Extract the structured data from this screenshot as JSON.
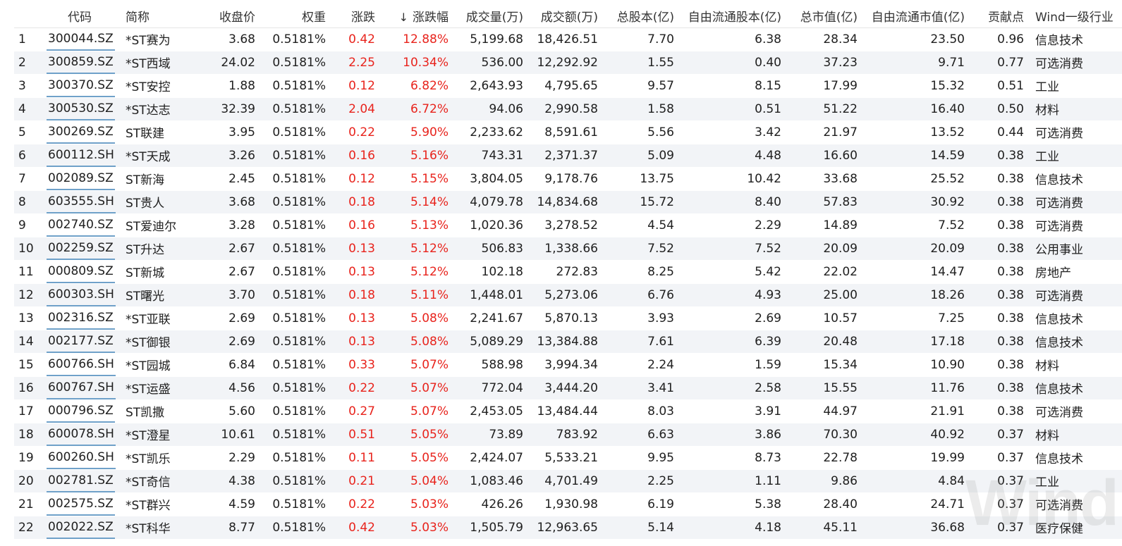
{
  "table": {
    "headers": {
      "index": "",
      "code": "代码",
      "name": "简称",
      "close": "收盘价",
      "weight": "权重",
      "change": "涨跌",
      "change_pct": "涨跌幅",
      "volume": "成交量(万)",
      "amount": "成交额(万)",
      "total_shares": "总股本(亿)",
      "free_float_shares": "自由流通股本(亿)",
      "market_cap": "总市值(亿)",
      "free_float_cap": "自由流通市值(亿)",
      "contribution": "贡献点",
      "industry": "Wind一级行业"
    },
    "sort_column": "change_pct",
    "sort_direction": "down-arrow-icon",
    "rows": [
      {
        "index": "1",
        "code": "300044.SZ",
        "name": "*ST赛为",
        "close": "3.68",
        "weight": "0.5181%",
        "change": "0.42",
        "change_pct": "12.88%",
        "volume": "5,199.68",
        "amount": "18,426.51",
        "total_shares": "7.70",
        "free_float_shares": "6.38",
        "market_cap": "28.34",
        "free_float_cap": "23.50",
        "contribution": "0.96",
        "industry": "信息技术"
      },
      {
        "index": "2",
        "code": "300859.SZ",
        "name": "*ST西域",
        "close": "24.02",
        "weight": "0.5181%",
        "change": "2.25",
        "change_pct": "10.34%",
        "volume": "536.00",
        "amount": "12,292.92",
        "total_shares": "1.55",
        "free_float_shares": "0.40",
        "market_cap": "37.23",
        "free_float_cap": "9.71",
        "contribution": "0.77",
        "industry": "可选消费"
      },
      {
        "index": "3",
        "code": "300370.SZ",
        "name": "*ST安控",
        "close": "1.88",
        "weight": "0.5181%",
        "change": "0.12",
        "change_pct": "6.82%",
        "volume": "2,643.93",
        "amount": "4,795.65",
        "total_shares": "9.57",
        "free_float_shares": "8.15",
        "market_cap": "17.99",
        "free_float_cap": "15.32",
        "contribution": "0.51",
        "industry": "工业"
      },
      {
        "index": "4",
        "code": "300530.SZ",
        "name": "*ST达志",
        "close": "32.39",
        "weight": "0.5181%",
        "change": "2.04",
        "change_pct": "6.72%",
        "volume": "94.06",
        "amount": "2,990.58",
        "total_shares": "1.58",
        "free_float_shares": "0.51",
        "market_cap": "51.22",
        "free_float_cap": "16.40",
        "contribution": "0.50",
        "industry": "材料"
      },
      {
        "index": "5",
        "code": "300269.SZ",
        "name": "ST联建",
        "close": "3.95",
        "weight": "0.5181%",
        "change": "0.22",
        "change_pct": "5.90%",
        "volume": "2,233.62",
        "amount": "8,591.61",
        "total_shares": "5.56",
        "free_float_shares": "3.42",
        "market_cap": "21.97",
        "free_float_cap": "13.52",
        "contribution": "0.44",
        "industry": "可选消费"
      },
      {
        "index": "6",
        "code": "600112.SH",
        "name": "*ST天成",
        "close": "3.26",
        "weight": "0.5181%",
        "change": "0.16",
        "change_pct": "5.16%",
        "volume": "743.31",
        "amount": "2,371.37",
        "total_shares": "5.09",
        "free_float_shares": "4.48",
        "market_cap": "16.60",
        "free_float_cap": "14.59",
        "contribution": "0.38",
        "industry": "工业"
      },
      {
        "index": "7",
        "code": "002089.SZ",
        "name": "ST新海",
        "close": "2.45",
        "weight": "0.5181%",
        "change": "0.12",
        "change_pct": "5.15%",
        "volume": "3,804.05",
        "amount": "9,178.76",
        "total_shares": "13.75",
        "free_float_shares": "10.42",
        "market_cap": "33.68",
        "free_float_cap": "25.52",
        "contribution": "0.38",
        "industry": "信息技术"
      },
      {
        "index": "8",
        "code": "603555.SH",
        "name": "ST贵人",
        "close": "3.68",
        "weight": "0.5181%",
        "change": "0.18",
        "change_pct": "5.14%",
        "volume": "4,079.78",
        "amount": "14,834.68",
        "total_shares": "15.72",
        "free_float_shares": "8.40",
        "market_cap": "57.83",
        "free_float_cap": "30.92",
        "contribution": "0.38",
        "industry": "可选消费"
      },
      {
        "index": "9",
        "code": "002740.SZ",
        "name": "ST爱迪尔",
        "close": "3.28",
        "weight": "0.5181%",
        "change": "0.16",
        "change_pct": "5.13%",
        "volume": "1,020.36",
        "amount": "3,278.52",
        "total_shares": "4.54",
        "free_float_shares": "2.29",
        "market_cap": "14.89",
        "free_float_cap": "7.52",
        "contribution": "0.38",
        "industry": "可选消费"
      },
      {
        "index": "10",
        "code": "002259.SZ",
        "name": "ST升达",
        "close": "2.67",
        "weight": "0.5181%",
        "change": "0.13",
        "change_pct": "5.12%",
        "volume": "506.83",
        "amount": "1,338.66",
        "total_shares": "7.52",
        "free_float_shares": "7.52",
        "market_cap": "20.09",
        "free_float_cap": "20.09",
        "contribution": "0.38",
        "industry": "公用事业"
      },
      {
        "index": "11",
        "code": "000809.SZ",
        "name": "ST新城",
        "close": "2.67",
        "weight": "0.5181%",
        "change": "0.13",
        "change_pct": "5.12%",
        "volume": "102.18",
        "amount": "272.83",
        "total_shares": "8.25",
        "free_float_shares": "5.42",
        "market_cap": "22.02",
        "free_float_cap": "14.47",
        "contribution": "0.38",
        "industry": "房地产"
      },
      {
        "index": "12",
        "code": "600303.SH",
        "name": "ST曙光",
        "close": "3.70",
        "weight": "0.5181%",
        "change": "0.18",
        "change_pct": "5.11%",
        "volume": "1,448.01",
        "amount": "5,273.06",
        "total_shares": "6.76",
        "free_float_shares": "4.93",
        "market_cap": "25.00",
        "free_float_cap": "18.26",
        "contribution": "0.38",
        "industry": "可选消费"
      },
      {
        "index": "13",
        "code": "002316.SZ",
        "name": "*ST亚联",
        "close": "2.69",
        "weight": "0.5181%",
        "change": "0.13",
        "change_pct": "5.08%",
        "volume": "2,241.67",
        "amount": "5,870.13",
        "total_shares": "3.93",
        "free_float_shares": "2.69",
        "market_cap": "10.57",
        "free_float_cap": "7.25",
        "contribution": "0.38",
        "industry": "信息技术"
      },
      {
        "index": "14",
        "code": "002177.SZ",
        "name": "*ST御银",
        "close": "2.69",
        "weight": "0.5181%",
        "change": "0.13",
        "change_pct": "5.08%",
        "volume": "5,089.29",
        "amount": "13,384.88",
        "total_shares": "7.61",
        "free_float_shares": "6.39",
        "market_cap": "20.48",
        "free_float_cap": "17.18",
        "contribution": "0.38",
        "industry": "信息技术"
      },
      {
        "index": "15",
        "code": "600766.SH",
        "name": "*ST园城",
        "close": "6.84",
        "weight": "0.5181%",
        "change": "0.33",
        "change_pct": "5.07%",
        "volume": "588.98",
        "amount": "3,994.34",
        "total_shares": "2.24",
        "free_float_shares": "1.59",
        "market_cap": "15.34",
        "free_float_cap": "10.90",
        "contribution": "0.38",
        "industry": "材料"
      },
      {
        "index": "16",
        "code": "600767.SH",
        "name": "*ST运盛",
        "close": "4.56",
        "weight": "0.5181%",
        "change": "0.22",
        "change_pct": "5.07%",
        "volume": "772.04",
        "amount": "3,444.20",
        "total_shares": "3.41",
        "free_float_shares": "2.58",
        "market_cap": "15.55",
        "free_float_cap": "11.76",
        "contribution": "0.38",
        "industry": "信息技术"
      },
      {
        "index": "17",
        "code": "000796.SZ",
        "name": "ST凯撒",
        "close": "5.60",
        "weight": "0.5181%",
        "change": "0.27",
        "change_pct": "5.07%",
        "volume": "2,453.05",
        "amount": "13,484.44",
        "total_shares": "8.03",
        "free_float_shares": "3.91",
        "market_cap": "44.97",
        "free_float_cap": "21.91",
        "contribution": "0.38",
        "industry": "可选消费"
      },
      {
        "index": "18",
        "code": "600078.SH",
        "name": "*ST澄星",
        "close": "10.61",
        "weight": "0.5181%",
        "change": "0.51",
        "change_pct": "5.05%",
        "volume": "73.89",
        "amount": "783.92",
        "total_shares": "6.63",
        "free_float_shares": "3.86",
        "market_cap": "70.30",
        "free_float_cap": "40.92",
        "contribution": "0.37",
        "industry": "材料"
      },
      {
        "index": "19",
        "code": "600260.SH",
        "name": "*ST凯乐",
        "close": "2.29",
        "weight": "0.5181%",
        "change": "0.11",
        "change_pct": "5.05%",
        "volume": "2,424.07",
        "amount": "5,533.21",
        "total_shares": "9.95",
        "free_float_shares": "8.73",
        "market_cap": "22.78",
        "free_float_cap": "19.99",
        "contribution": "0.37",
        "industry": "信息技术"
      },
      {
        "index": "20",
        "code": "002781.SZ",
        "name": "*ST奇信",
        "close": "4.38",
        "weight": "0.5181%",
        "change": "0.21",
        "change_pct": "5.04%",
        "volume": "1,083.46",
        "amount": "4,701.49",
        "total_shares": "2.25",
        "free_float_shares": "1.11",
        "market_cap": "9.86",
        "free_float_cap": "4.84",
        "contribution": "0.37",
        "industry": "工业"
      },
      {
        "index": "21",
        "code": "002575.SZ",
        "name": "*ST群兴",
        "close": "4.59",
        "weight": "0.5181%",
        "change": "0.22",
        "change_pct": "5.03%",
        "volume": "426.26",
        "amount": "1,930.98",
        "total_shares": "6.19",
        "free_float_shares": "5.38",
        "market_cap": "28.40",
        "free_float_cap": "24.71",
        "contribution": "0.37",
        "industry": "可选消费"
      },
      {
        "index": "22",
        "code": "002022.SZ",
        "name": "*ST科华",
        "close": "8.77",
        "weight": "0.5181%",
        "change": "0.42",
        "change_pct": "5.03%",
        "volume": "1,505.79",
        "amount": "12,963.65",
        "total_shares": "5.14",
        "free_float_shares": "4.18",
        "market_cap": "45.11",
        "free_float_cap": "36.68",
        "contribution": "0.37",
        "industry": "医疗保健"
      }
    ]
  },
  "colors": {
    "up": "#e8231c",
    "text": "#202020",
    "stripe": "#f2f4f7",
    "code_underline": "#6fa1c9"
  },
  "watermark": "Wind"
}
